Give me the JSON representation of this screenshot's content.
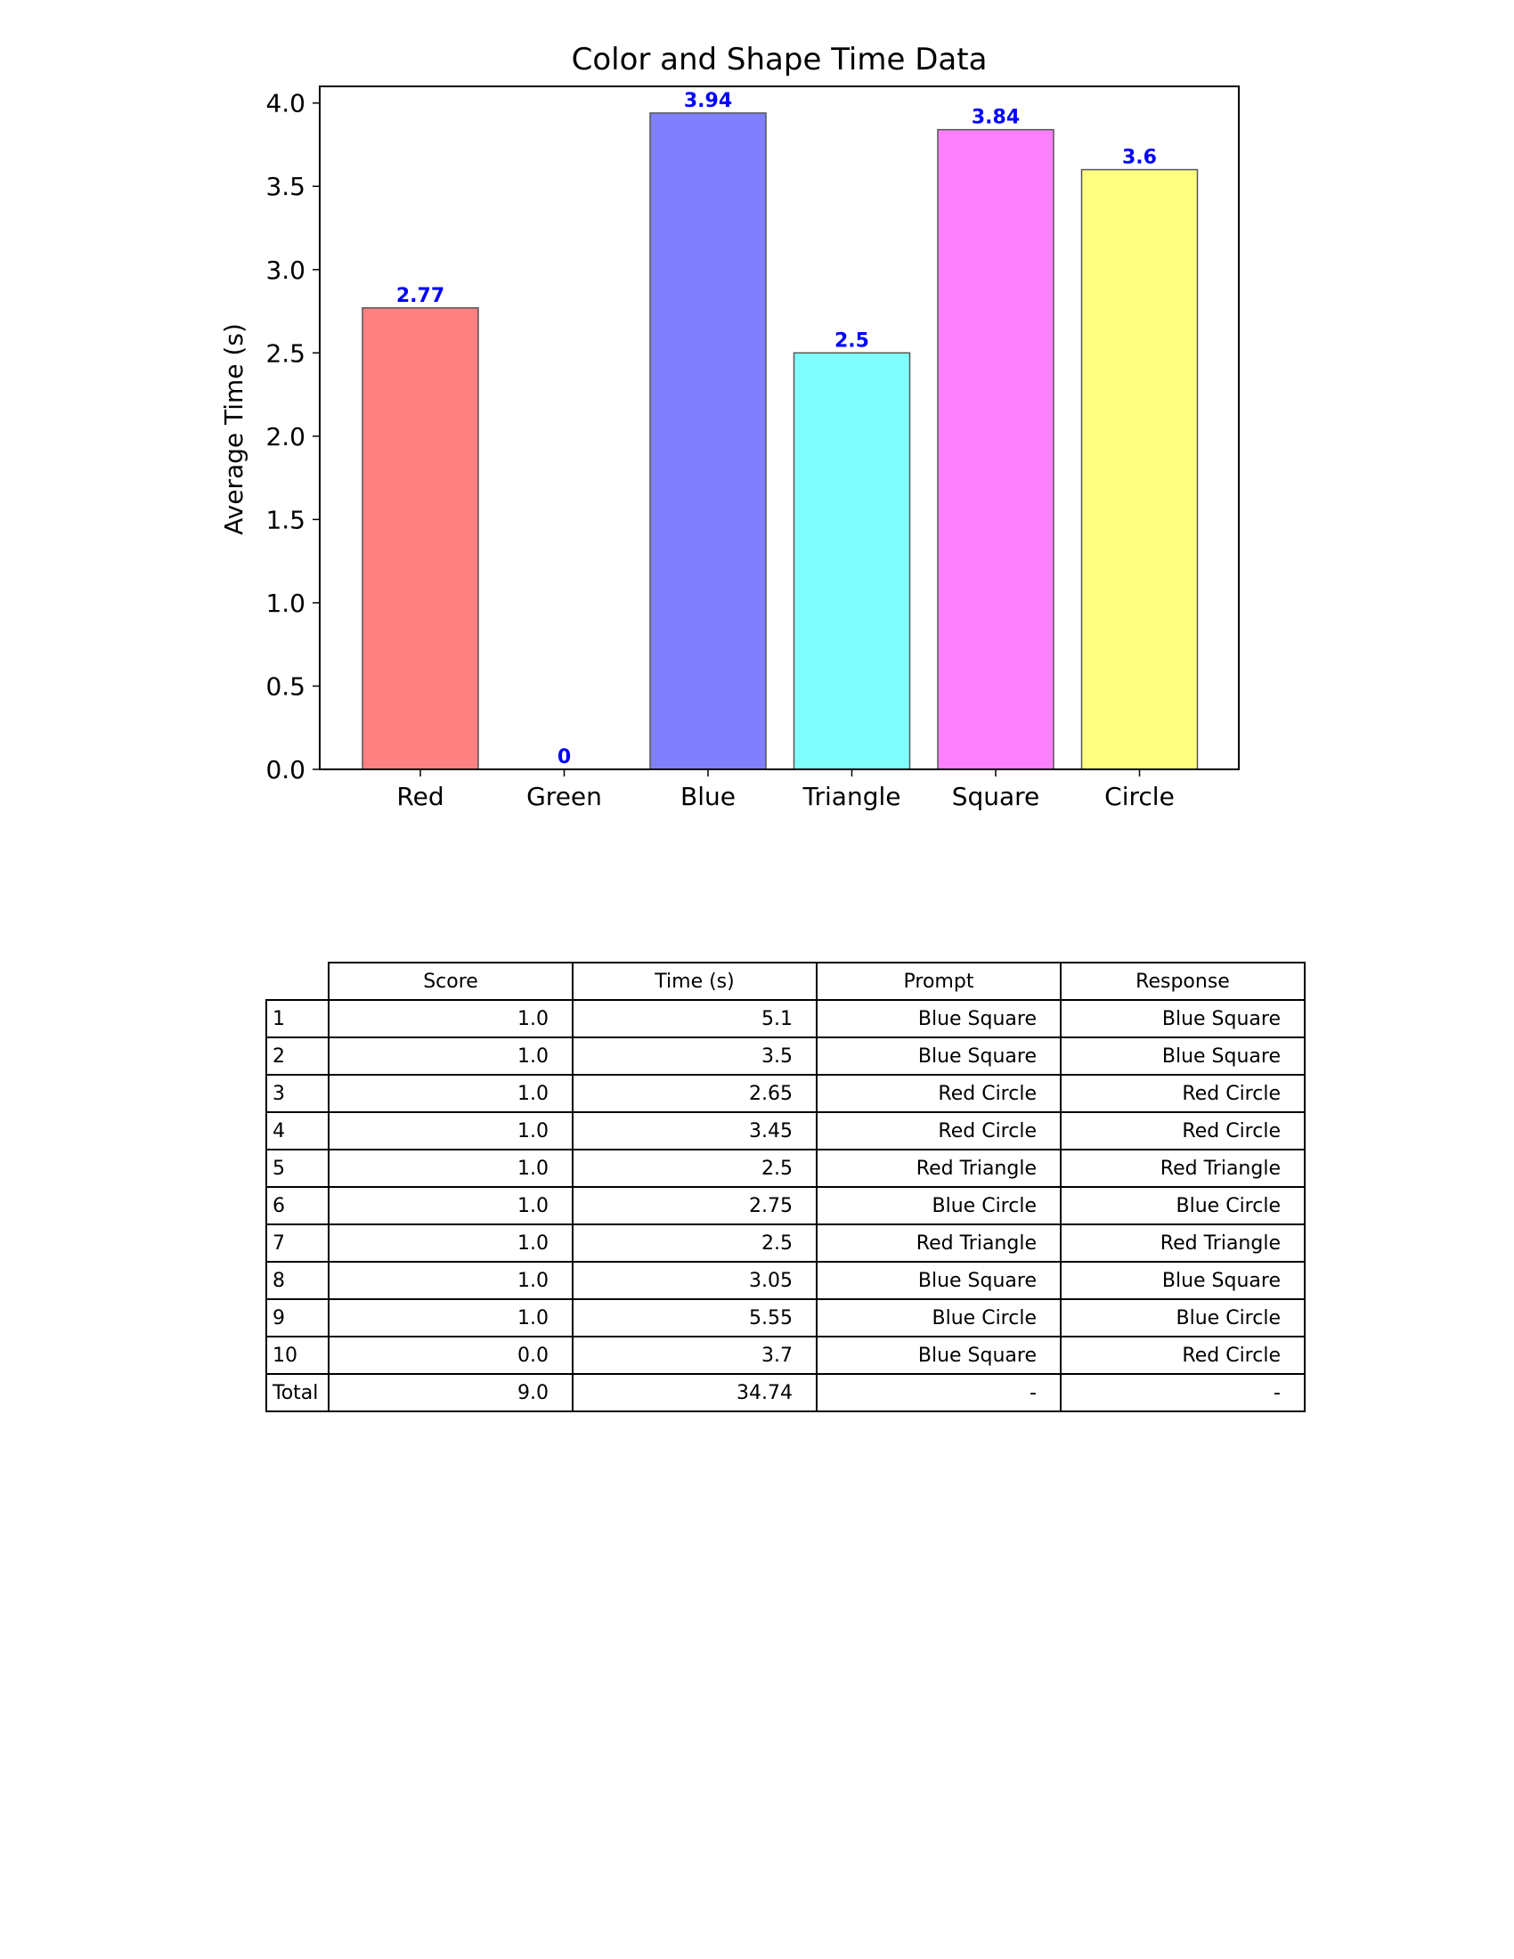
{
  "chart_data": {
    "type": "bar",
    "title": "Color and Shape Time Data",
    "xlabel": "",
    "ylabel": "Average Time (s)",
    "categories": [
      "Red",
      "Green",
      "Blue",
      "Triangle",
      "Square",
      "Circle"
    ],
    "values": [
      2.77,
      0,
      3.94,
      2.5,
      3.84,
      3.6
    ],
    "value_labels": [
      "2.77",
      "0",
      "3.94",
      "2.5",
      "3.84",
      "3.6"
    ],
    "colors": [
      "#ff8080",
      "#80ff80",
      "#8080ff",
      "#80ffff",
      "#ff80ff",
      "#ffff80"
    ],
    "label_color": "#0000ff",
    "ylim": [
      0,
      4.0
    ],
    "yticks": [
      0.0,
      0.5,
      1.0,
      1.5,
      2.0,
      2.5,
      3.0,
      3.5,
      4.0
    ],
    "ytick_labels": [
      "0.0",
      "0.5",
      "1.0",
      "1.5",
      "2.0",
      "2.5",
      "3.0",
      "3.5",
      "4.0"
    ],
    "grid": false
  },
  "table": {
    "columns": [
      "Score",
      "Time (s)",
      "Prompt",
      "Response"
    ],
    "rows": [
      {
        "label": "1",
        "score": "1.0",
        "time": "5.1",
        "prompt": "Blue Square",
        "response": "Blue Square"
      },
      {
        "label": "2",
        "score": "1.0",
        "time": "3.5",
        "prompt": "Blue Square",
        "response": "Blue Square"
      },
      {
        "label": "3",
        "score": "1.0",
        "time": "2.65",
        "prompt": "Red Circle",
        "response": "Red Circle"
      },
      {
        "label": "4",
        "score": "1.0",
        "time": "3.45",
        "prompt": "Red Circle",
        "response": "Red Circle"
      },
      {
        "label": "5",
        "score": "1.0",
        "time": "2.5",
        "prompt": "Red Triangle",
        "response": "Red Triangle"
      },
      {
        "label": "6",
        "score": "1.0",
        "time": "2.75",
        "prompt": "Blue Circle",
        "response": "Blue Circle"
      },
      {
        "label": "7",
        "score": "1.0",
        "time": "2.5",
        "prompt": "Red Triangle",
        "response": "Red Triangle"
      },
      {
        "label": "8",
        "score": "1.0",
        "time": "3.05",
        "prompt": "Blue Square",
        "response": "Blue Square"
      },
      {
        "label": "9",
        "score": "1.0",
        "time": "5.55",
        "prompt": "Blue Circle",
        "response": "Blue Circle"
      },
      {
        "label": "10",
        "score": "0.0",
        "time": "3.7",
        "prompt": "Blue Square",
        "response": "Red Circle"
      },
      {
        "label": "Total",
        "score": "9.0",
        "time": "34.74",
        "prompt": "-",
        "response": "-"
      }
    ]
  }
}
